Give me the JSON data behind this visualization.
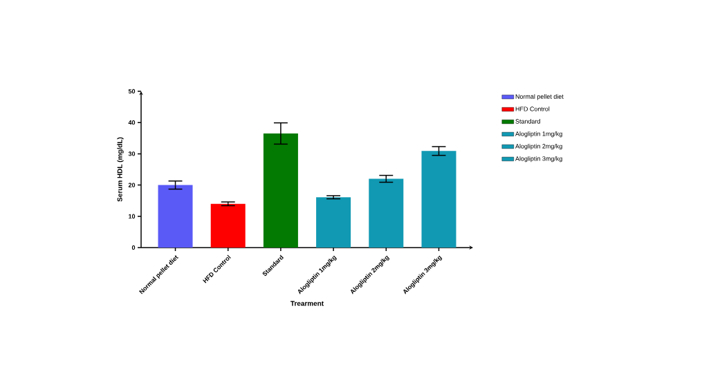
{
  "chart_data": {
    "type": "bar",
    "xlabel": "Trearment",
    "ylabel": "Serum HDL (mg/dL)",
    "categories": [
      "Normal pellet diet",
      "HFD Control",
      "Standard",
      "Alogliptin 1mg/kg",
      "Alogliptin 2mg/kg",
      "Alogliptin 3mg/kg"
    ],
    "series": [
      {
        "name": "Normal pellet diet",
        "color": "#5a5af7",
        "values": [
          20,
          null,
          null,
          null,
          null,
          null
        ],
        "errors": [
          1.3,
          null,
          null,
          null,
          null,
          null
        ]
      },
      {
        "name": "HFD Control",
        "color": "#fe0000",
        "values": [
          null,
          14,
          null,
          null,
          null,
          null
        ],
        "errors": [
          null,
          0.6,
          null,
          null,
          null,
          null
        ]
      },
      {
        "name": "Standard",
        "color": "#037a01",
        "values": [
          null,
          null,
          36.5,
          null,
          null,
          null
        ],
        "errors": [
          null,
          null,
          3.4,
          null,
          null,
          null
        ]
      },
      {
        "name": "Alogliptin 1mg/kg",
        "color": "#1199b3",
        "values": [
          null,
          null,
          null,
          16.1,
          null,
          null
        ],
        "errors": [
          null,
          null,
          null,
          0.5,
          null,
          null
        ]
      },
      {
        "name": "Alogliptin 2mg/kg",
        "color": "#1199b3",
        "values": [
          null,
          null,
          null,
          null,
          22,
          null
        ],
        "errors": [
          null,
          null,
          null,
          null,
          1.1,
          null
        ]
      },
      {
        "name": "Alogliptin 3mg/kg",
        "color": "#1199b3",
        "values": [
          null,
          null,
          null,
          null,
          null,
          30.9
        ],
        "errors": [
          null,
          null,
          null,
          null,
          null,
          1.4
        ]
      }
    ],
    "ylim": [
      0,
      50
    ],
    "yticks": [
      0,
      10,
      20,
      30,
      40,
      50
    ],
    "grid": false,
    "legend": "right"
  }
}
